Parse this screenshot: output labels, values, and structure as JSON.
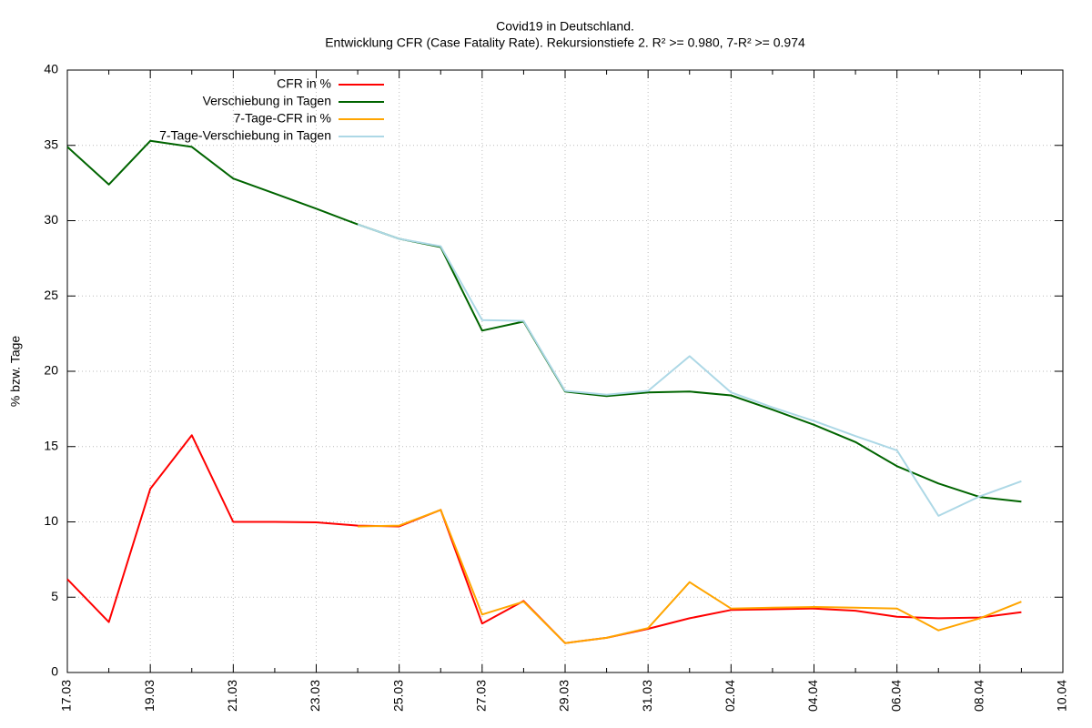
{
  "chart_data": {
    "type": "line",
    "title": "Covid19 in Deutschland.",
    "subtitle": "Entwicklung CFR (Case Fatality Rate). Rekursionstiefe 2. R² >= 0.980, 7-R² >= 0.974",
    "ylabel": "% bzw. Tage",
    "categories": [
      "17.03",
      null,
      "19.03",
      null,
      "21.03",
      null,
      "23.03",
      null,
      "25.03",
      null,
      "27.03",
      null,
      "29.03",
      null,
      "31.03",
      null,
      "02.04",
      null,
      "04.04",
      null,
      "06.04",
      null,
      "08.04",
      null,
      "10.04"
    ],
    "series": [
      {
        "name": "CFR in %",
        "color": "#ff0000",
        "values": [
          6.2,
          3.35,
          12.2,
          15.75,
          10.0,
          10.0,
          9.97,
          9.75,
          9.7,
          10.8,
          3.25,
          4.75,
          1.95,
          2.3,
          2.9,
          3.6,
          4.15,
          4.2,
          4.25,
          4.1,
          3.7,
          3.6,
          3.65,
          4.0,
          null
        ]
      },
      {
        "name": "Verschiebung in Tagen",
        "color": "#006400",
        "values": [
          34.9,
          32.4,
          35.3,
          34.9,
          32.8,
          31.8,
          30.8,
          29.75,
          28.8,
          28.25,
          22.7,
          23.3,
          18.65,
          18.35,
          18.6,
          18.65,
          18.4,
          17.45,
          16.45,
          15.3,
          13.7,
          12.55,
          11.65,
          11.35,
          null
        ]
      },
      {
        "name": "7-Tage-CFR in %",
        "color": "#ffa500",
        "values": [
          null,
          null,
          null,
          null,
          null,
          null,
          null,
          9.7,
          9.75,
          10.8,
          3.85,
          4.7,
          1.95,
          2.3,
          2.95,
          6.0,
          4.25,
          4.3,
          4.35,
          4.3,
          4.25,
          2.8,
          3.6,
          4.7,
          null
        ]
      },
      {
        "name": "7-Tage-Verschiebung in Tagen",
        "color": "#add8e6",
        "values": [
          null,
          null,
          null,
          null,
          null,
          null,
          null,
          29.75,
          28.8,
          28.3,
          23.4,
          23.35,
          18.7,
          18.45,
          18.7,
          21.0,
          18.6,
          17.6,
          16.7,
          15.7,
          14.75,
          10.4,
          11.7,
          12.7,
          null
        ]
      }
    ],
    "ylim": [
      0,
      40
    ],
    "yticks": [
      0,
      5,
      10,
      15,
      20,
      25,
      30,
      35,
      40
    ],
    "grid": true,
    "legend": "upper left"
  }
}
